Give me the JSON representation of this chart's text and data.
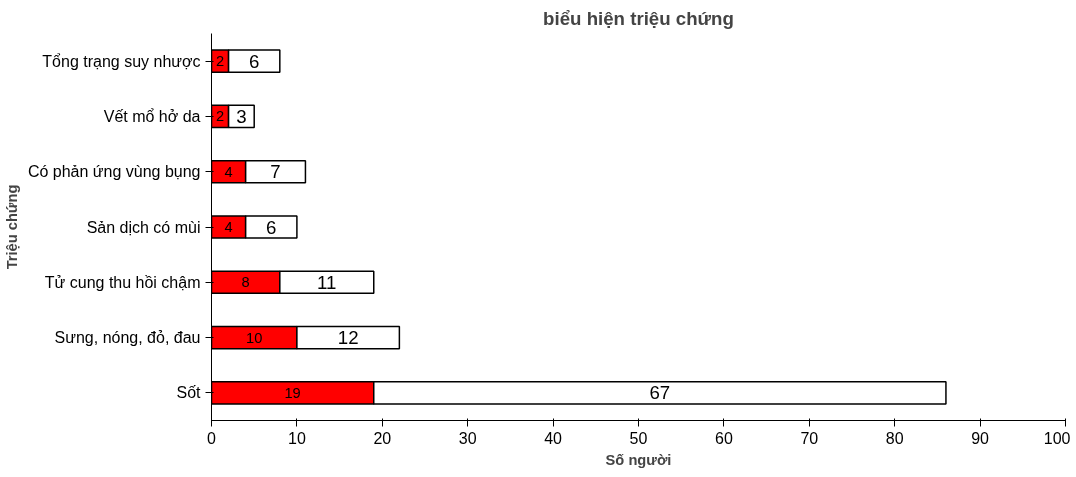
{
  "chart_data": {
    "type": "bar",
    "orientation": "horizontal",
    "stacked": true,
    "title": "biểu hiện triệu chứng",
    "xlabel": "Số người",
    "ylabel": "Triệu chứng",
    "categories": [
      "Tổng trạng suy nhược",
      "Vết mổ hở da",
      "Có phản ứng vùng bụng",
      "Sản dịch có mùi",
      "Tử cung thu hồi chậm",
      "Sưng, nóng, đỏ, đau",
      "Sốt"
    ],
    "series": [
      {
        "color": "#ff0000",
        "values": [
          2,
          2,
          4,
          4,
          8,
          10,
          19
        ]
      },
      {
        "color": "#ffffff",
        "values": [
          6,
          3,
          7,
          6,
          11,
          12,
          67
        ]
      }
    ],
    "xlim": [
      0,
      100
    ],
    "xticks": [
      0,
      10,
      20,
      30,
      40,
      50,
      60,
      70,
      80,
      90,
      100
    ],
    "data_labels": true,
    "grid": false
  }
}
